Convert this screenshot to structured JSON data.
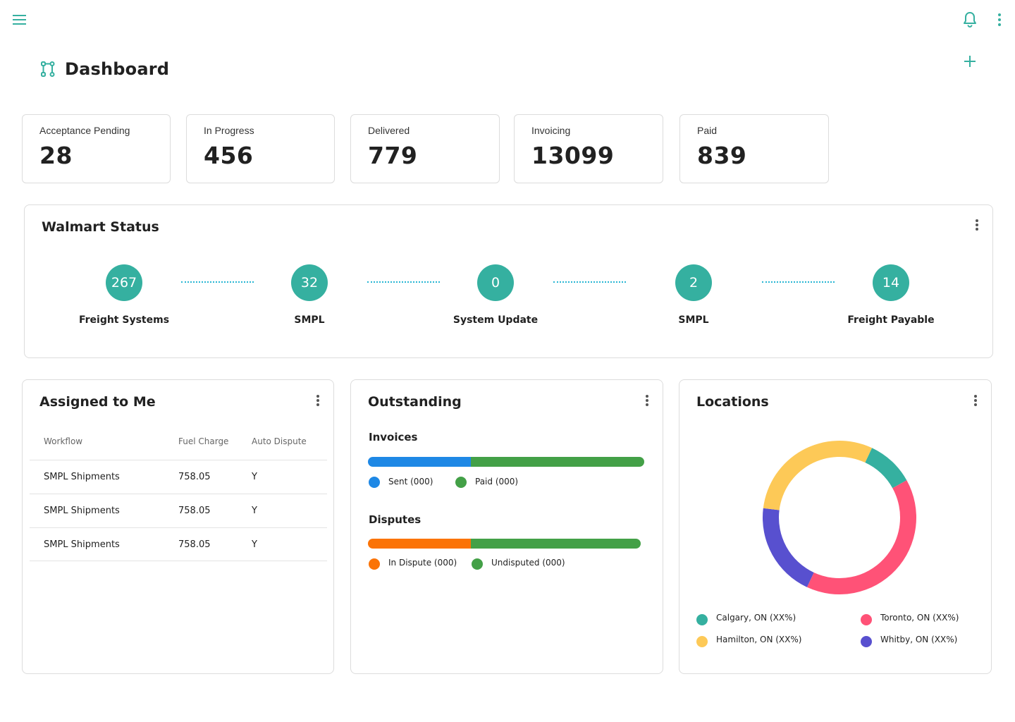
{
  "colors": {
    "accent": "#35b0a0",
    "connector": "#29b6d3",
    "sent": "#1e88e5",
    "paid": "#43a047",
    "in_dispute": "#fb7306",
    "undisputed": "#43a047",
    "calgary": "#35b0a0",
    "toronto": "#ff5277",
    "hamilton": "#fdc957",
    "whitby": "#5850cf"
  },
  "icons": {
    "menu": "hamburger-menu-icon",
    "notifications": "bell-icon",
    "more": "kebab-vertical-icon",
    "dashboard": "workflow-nodes-icon",
    "add": "plus-icon"
  },
  "header": {
    "title": "Dashboard"
  },
  "stats": [
    {
      "label": "Acceptance Pending",
      "value": "28"
    },
    {
      "label": "In Progress",
      "value": "456"
    },
    {
      "label": "Delivered",
      "value": "779"
    },
    {
      "label": "Invoicing",
      "value": "13099"
    },
    {
      "label": "Paid",
      "value": "839"
    }
  ],
  "status": {
    "title": "Walmart Status",
    "steps": [
      {
        "count": "267",
        "label": "Freight Systems"
      },
      {
        "count": "32",
        "label": "SMPL"
      },
      {
        "count": "0",
        "label": "System Update"
      },
      {
        "count": "2",
        "label": "SMPL"
      },
      {
        "count": "14",
        "label": "Freight Payable"
      }
    ]
  },
  "assigned": {
    "title": "Assigned to Me",
    "columns": [
      "Workflow",
      "Fuel Charge",
      "Auto Dispute"
    ],
    "rows": [
      [
        "SMPL Shipments",
        "758.05",
        "Y"
      ],
      [
        "SMPL Shipments",
        "758.05",
        "Y"
      ],
      [
        "SMPL Shipments",
        "758.05",
        "Y"
      ]
    ]
  },
  "outstanding": {
    "title": "Outstanding",
    "invoices": {
      "title": "Invoices",
      "sent_fraction": 0.373,
      "legend": [
        "Sent (000)",
        "Paid (000)"
      ]
    },
    "disputes": {
      "title": "Disputes",
      "in_dispute_fraction": 0.377,
      "legend": [
        "In Dispute (000)",
        "Undisputed (000)"
      ]
    }
  },
  "locations": {
    "title": "Locations",
    "legend": [
      "Calgary, ON (XX%)",
      "Toronto, ON (XX%)",
      "Hamilton, ON (XX%)",
      "Whitby, ON (XX%)"
    ]
  },
  "chart_data": {
    "type": "pie",
    "donut": true,
    "title": "Locations",
    "categories": [
      "Calgary, ON (XX%)",
      "Toronto, ON (XX%)",
      "Whitby, ON (XX%)",
      "Hamilton, ON (XX%)"
    ],
    "values": [
      10,
      40,
      20,
      30
    ],
    "colors": [
      "#35b0a0",
      "#ff5277",
      "#5850cf",
      "#fdc957"
    ],
    "legend": "bottom"
  }
}
